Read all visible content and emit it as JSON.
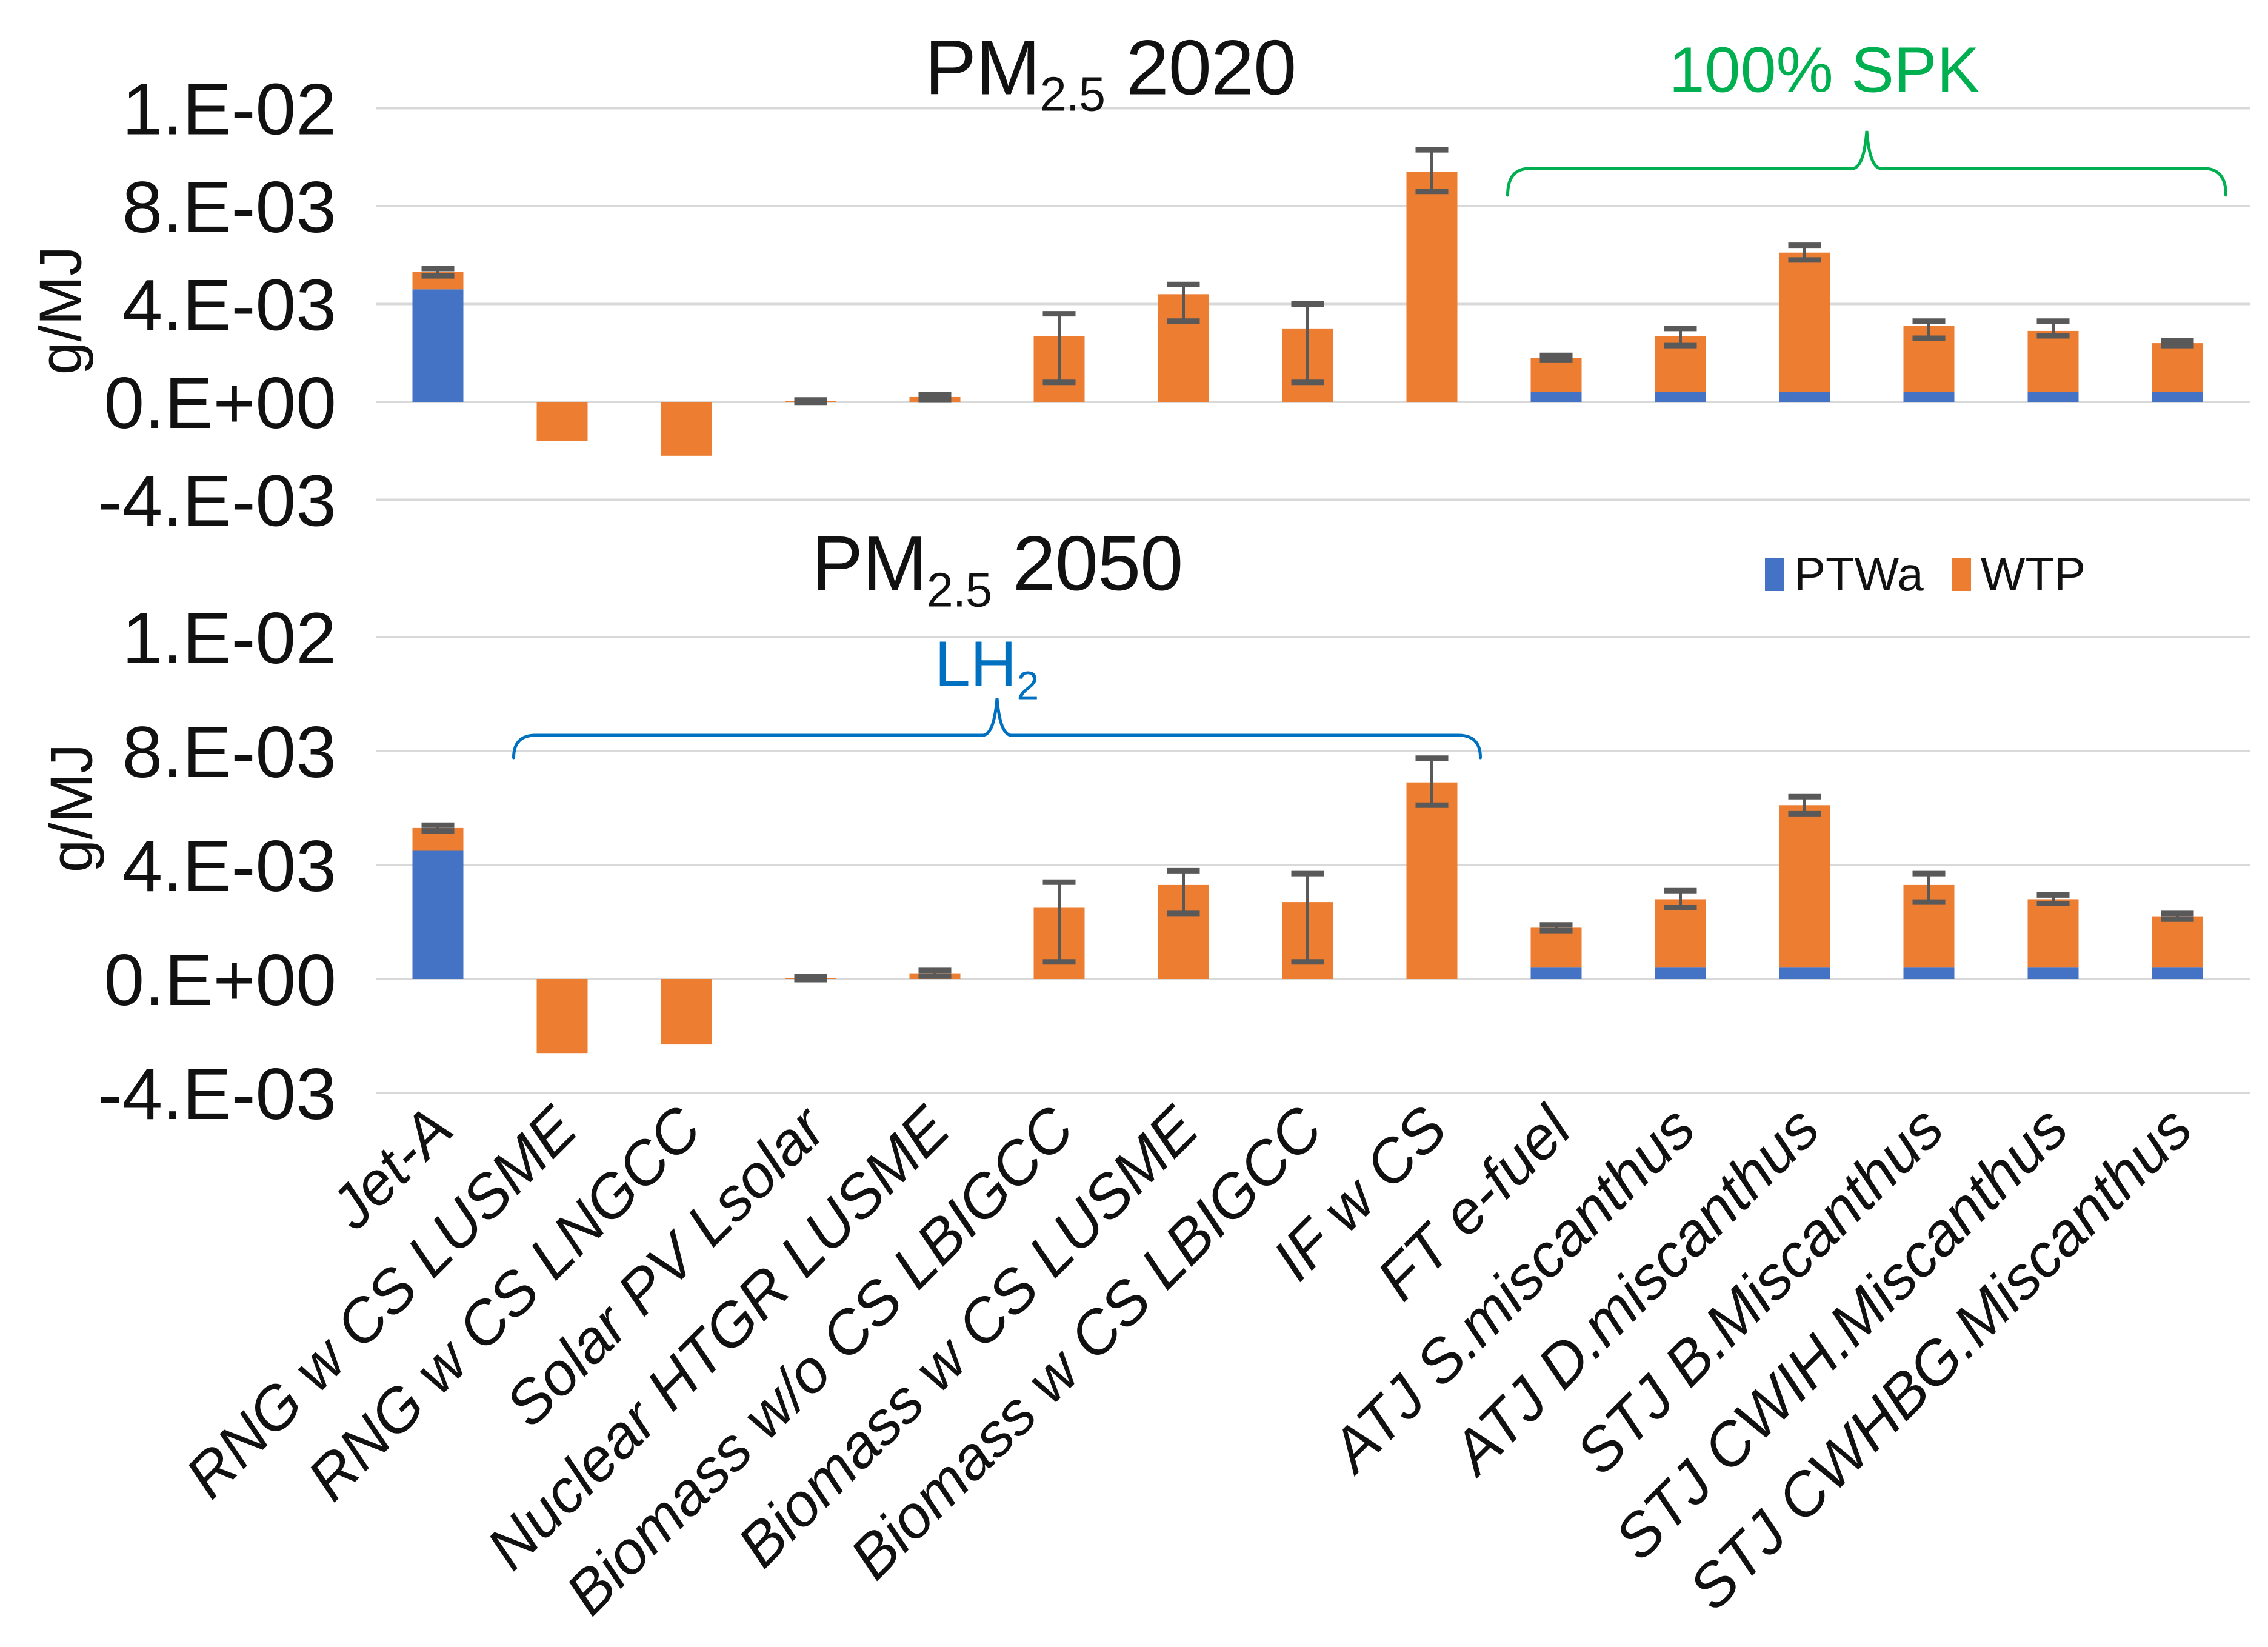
{
  "figure": {
    "background": "#ffffff",
    "legend": {
      "items": [
        {
          "label": "PTWa",
          "color": "#4472C4"
        },
        {
          "label": "WTP",
          "color": "#ED7D31"
        }
      ]
    },
    "colors": {
      "ptwa_blue": "#4472C4",
      "wtp_orange": "#ED7D31",
      "error_bar": "#595959",
      "gridline": "#D9D9D9",
      "text": "#111111",
      "spk_green": "#00B050",
      "lh2_blue": "#0070C0"
    }
  },
  "chart_data": [
    {
      "type": "bar",
      "stacked": true,
      "title": {
        "prefix": "PM",
        "sub": "2.5",
        "suffix": " 2020"
      },
      "ylabel": "g/MJ",
      "ylim": [
        -0.004,
        0.01
      ],
      "grid": true,
      "legend_position": "none",
      "y_tick_labels": [
        "1.E-02",
        "8.E-03",
        "4.E-03",
        "0.E+00",
        "-4.E-03"
      ],
      "y_tick_values": [
        0.01,
        0.008,
        0.004,
        0,
        -0.004
      ],
      "axis_note": "gridlines evenly spaced although top interval spans only 2e-3",
      "categories": [
        "Jet-A",
        "RNG w CS LUSME",
        "RNG w CS LNGCC",
        "Solar PV Lsolar",
        "Nuclear HTGR LUSME",
        "Biomass w/o CS LBIGCC",
        "Biomass w CS LUSME",
        "Biomass w CS LBIGCC",
        "IF w CS",
        "FT e-fuel",
        "ATJ S.miscanthus",
        "ATJ D.miscanthus",
        "STJ B.Miscanthus",
        "STJ CWIH.Miscanthus",
        "STJ CWHBG.Miscanthus"
      ],
      "series": [
        {
          "name": "PTWa",
          "color": "#4472C4",
          "values": [
            0.0046,
            0,
            0,
            0,
            0,
            0,
            0,
            0,
            0,
            0.0004,
            0.0004,
            0.0004,
            0.0004,
            0.0004,
            0.0004
          ]
        },
        {
          "name": "WTP",
          "color": "#ED7D31",
          "values": [
            0.0007,
            -0.0016,
            -0.0022,
            3e-05,
            0.0002,
            0.0027,
            0.0044,
            0.003,
            0.0087,
            0.0014,
            0.0023,
            0.0057,
            0.0027,
            0.0025,
            0.002
          ]
        }
      ],
      "error_plus": [
        0.00015,
        0,
        0,
        5e-05,
        0.0001,
        0.0009,
        0.0004,
        0.001,
        0.00045,
        0.0001,
        0.0003,
        0.0003,
        0.0002,
        0.0004,
        0.0001
      ],
      "error_minus": [
        0.00015,
        0,
        0,
        5e-05,
        0.0001,
        0.0019,
        0.0011,
        0.0022,
        0.0004,
        0.0001,
        0.0004,
        0.0003,
        0.0005,
        0.0002,
        0.0001
      ],
      "annotation": {
        "text": "100% SPK",
        "color": "#00B050",
        "from_category": "FT e-fuel",
        "to_category": "STJ CWHBG.Miscanthus"
      }
    },
    {
      "type": "bar",
      "stacked": true,
      "title": {
        "prefix": "PM",
        "sub": "2.5",
        "suffix": " 2050"
      },
      "ylabel": "g/MJ",
      "ylim": [
        -0.004,
        0.01
      ],
      "grid": true,
      "legend_position": "top-right",
      "y_tick_labels": [
        "1.E-02",
        "8.E-03",
        "4.E-03",
        "0.E+00",
        "-4.E-03"
      ],
      "y_tick_values": [
        0.01,
        0.008,
        0.004,
        0,
        -0.004
      ],
      "axis_note": "gridlines evenly spaced although top interval spans only 2e-3",
      "categories": [
        "Jet-A",
        "RNG w CS LUSME",
        "RNG w CS LNGCC",
        "Solar PV Lsolar",
        "Nuclear HTGR LUSME",
        "Biomass w/o CS LBIGCC",
        "Biomass w CS LUSME",
        "Biomass w CS LBIGCC",
        "IF w CS",
        "FT e-fuel",
        "ATJ S.miscanthus",
        "ATJ D.miscanthus",
        "STJ B.Miscanthus",
        "STJ CWIH.Miscanthus",
        "STJ CWHBG.Miscanthus"
      ],
      "series": [
        {
          "name": "PTWa",
          "color": "#4472C4",
          "values": [
            0.0045,
            0,
            0,
            0,
            0,
            0,
            0,
            0,
            0,
            0.0004,
            0.0004,
            0.0004,
            0.0004,
            0.0004,
            0.0004
          ]
        },
        {
          "name": "WTP",
          "color": "#ED7D31",
          "values": [
            0.0008,
            -0.0026,
            -0.0023,
            3e-05,
            0.0002,
            0.0025,
            0.0033,
            0.0027,
            0.0069,
            0.0014,
            0.0024,
            0.0057,
            0.0029,
            0.0024,
            0.0018
          ]
        }
      ],
      "error_plus": [
        0.0001,
        0,
        0,
        5e-05,
        0.0001,
        0.0009,
        0.0005,
        0.001,
        0.00085,
        0.0001,
        0.0003,
        0.0003,
        0.0004,
        0.00015,
        0.0001
      ],
      "error_minus": [
        0.0001,
        0,
        0,
        5e-05,
        0.0001,
        0.0019,
        0.001,
        0.0021,
        0.0008,
        0.0001,
        0.0003,
        0.0003,
        0.0006,
        0.00015,
        0.0001
      ],
      "annotation": {
        "prefix": "LH",
        "sub": "2",
        "text": "LH2",
        "color": "#0070C0",
        "from_category": "RNG w CS LUSME",
        "to_category": "IF w CS"
      }
    }
  ]
}
